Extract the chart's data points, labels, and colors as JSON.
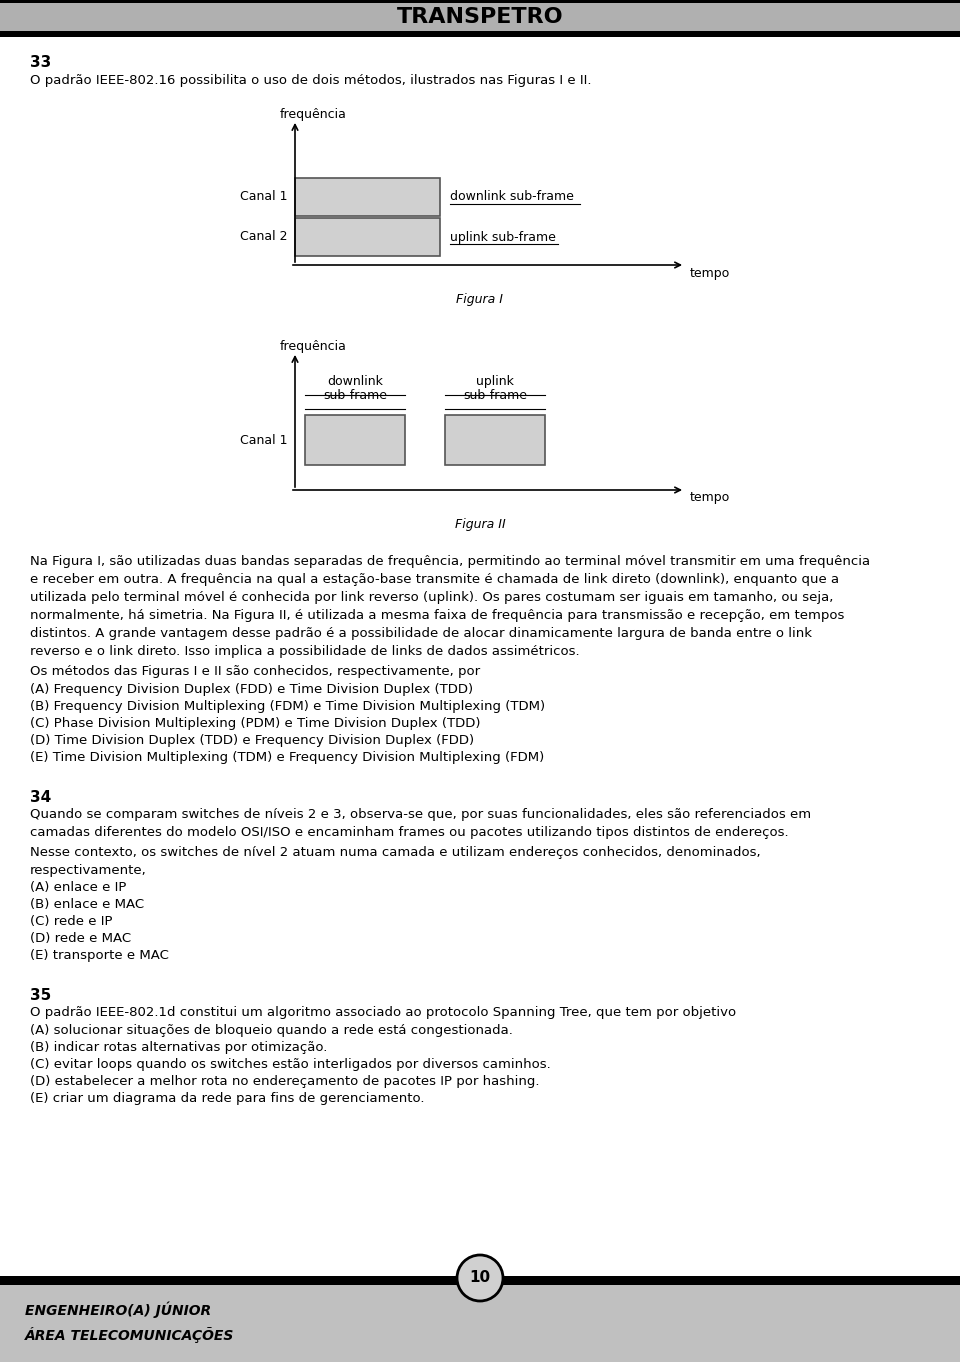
{
  "title": "TRANSPETRO",
  "page_number": "10",
  "footer_line1": "ENGENHEIRO(A) JÚNIOR",
  "footer_line2": "ÁREA TELECOMUNICAÇÕES",
  "bg_color": "#ffffff",
  "header_bg": "#b0b0b0",
  "footer_bg": "#c0c0c0",
  "bar_fill": "#d0d0d0",
  "bar_edge": "#555555",
  "text_color": "#000000",
  "fig1_title": "frequência",
  "fig1_xlabel": "tempo",
  "fig1_canal1": "Canal 1",
  "fig1_canal2": "Canal 2",
  "fig1_label1": "downlink sub-frame",
  "fig1_label2": "uplink sub-frame",
  "fig2_title": "frequência",
  "fig2_xlabel": "tempo",
  "fig2_canal1": "Canal 1",
  "fig2_label_dl": "downlink\nsub-frame",
  "fig2_label_ul": "uplink\nsub-frame",
  "fig2_caption": "Figura II",
  "fig1_caption": "Figura I",
  "section33_title": "33",
  "section33_text": "O padrão IEEE-802.16 possibilita o uso de dois métodos, ilustrados nas Figuras I e II.",
  "section33_text2": "Na Figura I, são utilizadas duas bandas separadas de frequência, permitindo ao terminal móvel transmitir em uma frequência\ne receber em outra. A frequência na qual a estação-base transmite é chamada de link direto (downlink), enquanto que a\nutilizada pelo terminal móvel é conhecida por link reverso (uplink). Os pares costumam ser iguais em tamanho, ou seja,\nnormalmente, há simetria. Na Figura II, é utilizada a mesma faixa de frequência para transmissão e recepção, em tempos\ndistintos. A grande vantagem desse padrão é a possibilidade de alocar dinamicamente largura de banda entre o link\nreverso e o link direto. Isso implica a possibilidade de links de dados assimétricos.",
  "section33_mc_intro": "Os métodos das Figuras I e II são conhecidos, respectivamente, por",
  "section33_mc_a": "(A) Frequency Division Duplex (FDD) e Time Division Duplex (TDD)",
  "section33_mc_b": "(B) Frequency Division Multiplexing (FDM) e Time Division Multiplexing (TDM)",
  "section33_mc_c": "(C) Phase Division Multiplexing (PDM) e Time Division Duplex (TDD)",
  "section33_mc_d": "(D) Time Division Duplex (TDD) e Frequency Division Duplex (FDD)",
  "section33_mc_e": "(E) Time Division Multiplexing (TDM) e Frequency Division Multiplexing (FDM)",
  "section34_title": "34",
  "section34_text": "Quando se comparam switches de níveis 2 e 3, observa-se que, por suas funcionalidades, eles são referenciados em\ncamadas diferentes do modelo OSI/ISO e encaminham frames ou pacotes utilizando tipos distintos de endereços.",
  "section34_text2": "Nesse contexto, os switches de nível 2 atuam numa camada e utilizam endereços conhecidos, denominados,\nrespectivamente,",
  "section34_mc_a": "(A) enlace e IP",
  "section34_mc_b": "(B) enlace e MAC",
  "section34_mc_c": "(C) rede e IP",
  "section34_mc_d": "(D) rede e MAC",
  "section34_mc_e": "(E) transporte e MAC",
  "section35_title": "35",
  "section35_text": "O padrão IEEE-802.1d constitui um algoritmo associado ao protocolo Spanning Tree, que tem por objetivo",
  "section35_mc_a": "(A) solucionar situações de bloqueio quando a rede está congestionada.",
  "section35_mc_b": "(B) indicar rotas alternativas por otimização.",
  "section35_mc_c": "(C) evitar loops quando os switches estão interligados por diversos caminhos.",
  "section35_mc_d": "(D) estabelecer a melhor rota no endereçamento de pacotes IP por hashing.",
  "section35_mc_e": "(E) criar um diagrama da rede para fins de gerenciamento."
}
